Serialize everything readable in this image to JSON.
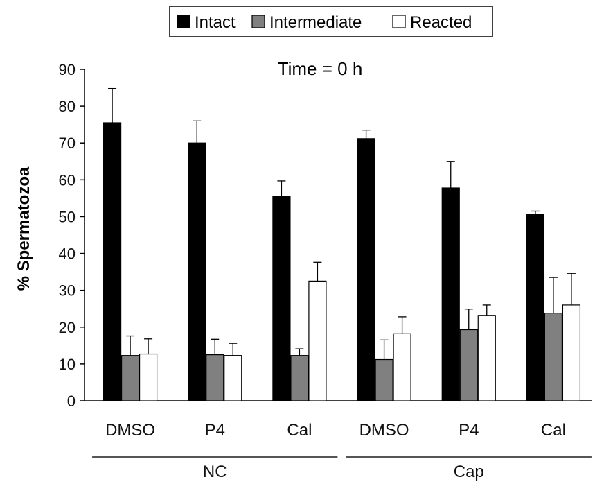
{
  "chart_data": {
    "type": "bar",
    "title": "Time = 0 h",
    "ylabel": "% Spermatozoa",
    "xlabel": "",
    "ylim": [
      0,
      90
    ],
    "yticks": [
      0,
      10,
      20,
      30,
      40,
      50,
      60,
      70,
      80,
      90
    ],
    "categories": [
      "DMSO",
      "P4",
      "Cal",
      "DMSO",
      "P4",
      "Cal"
    ],
    "groups": [
      {
        "label": "NC",
        "categories": [
          0,
          1,
          2
        ]
      },
      {
        "label": "Cap",
        "categories": [
          3,
          4,
          5
        ]
      }
    ],
    "series": [
      {
        "name": "Intact",
        "color": "#000000",
        "values": [
          75.5,
          70,
          55.5,
          71.2,
          57.8,
          50.7
        ],
        "errors": [
          9.3,
          6,
          4.2,
          2.3,
          7.2,
          0.8
        ]
      },
      {
        "name": "Intermediate",
        "color": "#808080",
        "values": [
          12.3,
          12.5,
          12.3,
          11.2,
          19.3,
          23.8
        ],
        "errors": [
          5.3,
          4.2,
          1.8,
          5.3,
          5.6,
          9.7
        ]
      },
      {
        "name": "Reacted",
        "color": "#ffffff",
        "values": [
          12.7,
          12.3,
          32.5,
          18.2,
          23.2,
          26
        ],
        "errors": [
          4.1,
          3.3,
          5.1,
          4.6,
          2.8,
          8.6
        ]
      }
    ],
    "legend_position": "top"
  }
}
